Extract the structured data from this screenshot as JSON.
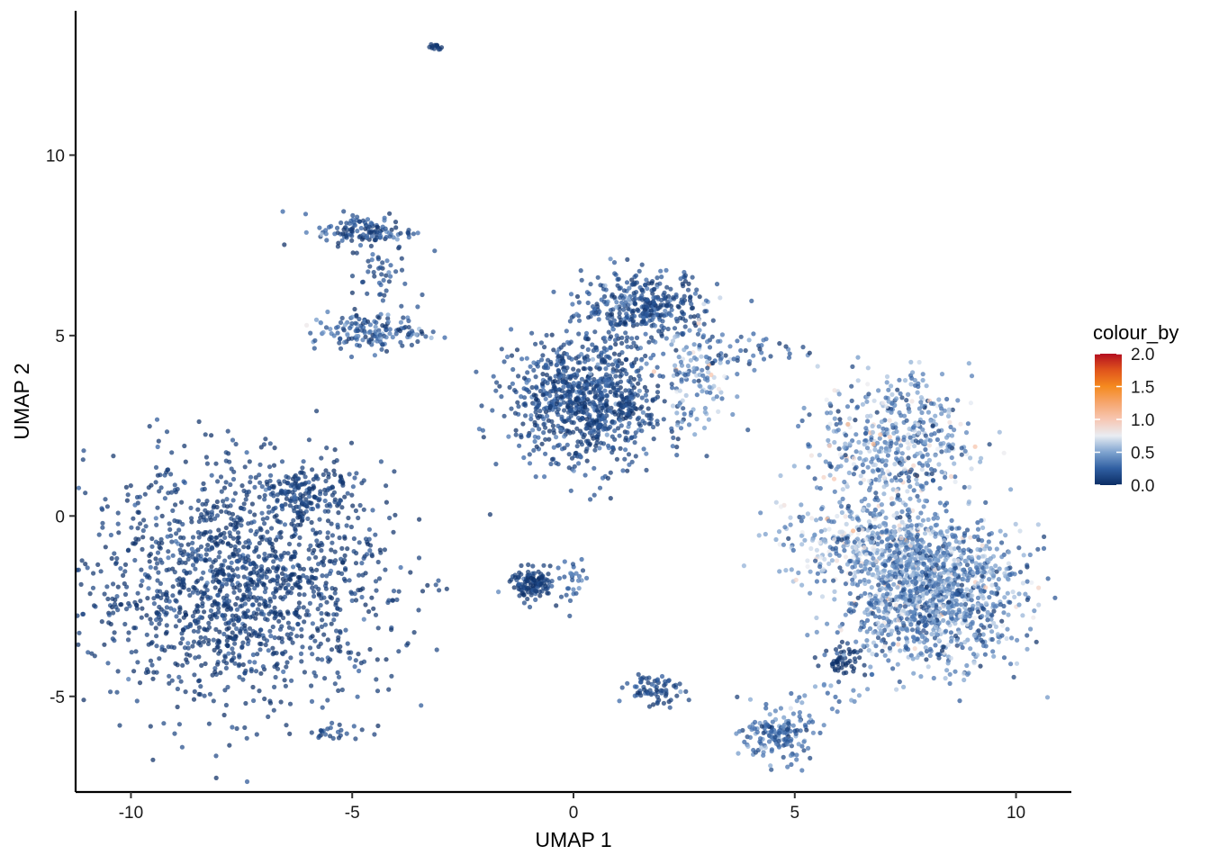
{
  "chart_data": {
    "type": "scatter",
    "xlabel": "UMAP 1",
    "ylabel": "UMAP 2",
    "xlim": [
      -11.25,
      11.25
    ],
    "ylim": [
      -7.65,
      14.0
    ],
    "x_ticks": [
      -10,
      -5,
      0,
      5,
      10
    ],
    "x_tick_labels": [
      "-10",
      "-5",
      "0",
      "5",
      "10"
    ],
    "y_ticks": [
      -5,
      0,
      5,
      10
    ],
    "y_tick_labels": [
      "-5",
      "0",
      "5",
      "10"
    ],
    "grid": false,
    "legend": {
      "title": "colour_by",
      "placement": "right",
      "type": "colorbar",
      "min": 0.0,
      "max": 2.0,
      "ticks": [
        0.0,
        0.5,
        1.0,
        1.5,
        2.0
      ],
      "tick_labels": [
        "0.0",
        "0.5",
        "1.0",
        "1.5",
        "2.0"
      ],
      "colors": [
        "#0b2d64",
        "#2f5ea1",
        "#7ea3cf",
        "#e9edf3",
        "#f7c7b3",
        "#f6a66e",
        "#f58a1f",
        "#e0541c",
        "#b40f20"
      ]
    },
    "clusters": [
      {
        "cx": -7.5,
        "cy": -1.9,
        "sx": 2.0,
        "sy": 1.9,
        "n": 1500,
        "value_mean": 0.08,
        "value_sd": 0.06
      },
      {
        "cx": -6.2,
        "cy": 0.6,
        "sx": 0.7,
        "sy": 0.5,
        "n": 150,
        "value_mean": 0.1,
        "value_sd": 0.06
      },
      {
        "cx": -5.5,
        "cy": -6.0,
        "sx": 0.45,
        "sy": 0.15,
        "n": 25,
        "value_mean": 0.1,
        "value_sd": 0.05
      },
      {
        "cx": -4.7,
        "cy": 7.9,
        "sx": 0.65,
        "sy": 0.3,
        "n": 130,
        "value_mean": 0.15,
        "value_sd": 0.12
      },
      {
        "cx": -4.6,
        "cy": 5.1,
        "sx": 0.8,
        "sy": 0.3,
        "n": 150,
        "value_mean": 0.2,
        "value_sd": 0.14
      },
      {
        "cx": -4.4,
        "cy": 6.6,
        "sx": 0.35,
        "sy": 0.55,
        "n": 40,
        "value_mean": 0.15,
        "value_sd": 0.1
      },
      {
        "cx": -3.1,
        "cy": 13.0,
        "sx": 0.08,
        "sy": 0.06,
        "n": 14,
        "value_mean": 0.05,
        "value_sd": 0.03
      },
      {
        "cx": 0.3,
        "cy": 3.2,
        "sx": 1.0,
        "sy": 1.05,
        "n": 900,
        "value_mean": 0.14,
        "value_sd": 0.1
      },
      {
        "cx": 1.6,
        "cy": 5.8,
        "sx": 0.8,
        "sy": 0.55,
        "n": 350,
        "value_mean": 0.16,
        "value_sd": 0.1
      },
      {
        "cx": 2.8,
        "cy": 3.8,
        "sx": 0.5,
        "sy": 0.8,
        "n": 120,
        "value_mean": 0.45,
        "value_sd": 0.2
      },
      {
        "cx": 4.0,
        "cy": 4.6,
        "sx": 0.7,
        "sy": 0.3,
        "n": 40,
        "value_mean": 0.25,
        "value_sd": 0.15
      },
      {
        "cx": -0.9,
        "cy": -1.9,
        "sx": 0.3,
        "sy": 0.25,
        "n": 120,
        "value_mean": 0.1,
        "value_sd": 0.06
      },
      {
        "cx": -0.1,
        "cy": -1.8,
        "sx": 0.25,
        "sy": 0.4,
        "n": 30,
        "value_mean": 0.25,
        "value_sd": 0.12
      },
      {
        "cx": 1.8,
        "cy": -4.8,
        "sx": 0.35,
        "sy": 0.3,
        "n": 70,
        "value_mean": 0.15,
        "value_sd": 0.08
      },
      {
        "cx": 4.6,
        "cy": -6.1,
        "sx": 0.45,
        "sy": 0.4,
        "n": 160,
        "value_mean": 0.28,
        "value_sd": 0.12
      },
      {
        "cx": 6.1,
        "cy": -4.0,
        "sx": 0.25,
        "sy": 0.25,
        "n": 50,
        "value_mean": 0.03,
        "value_sd": 0.02
      },
      {
        "cx": 7.3,
        "cy": 2.0,
        "sx": 1.0,
        "sy": 1.1,
        "n": 500,
        "value_mean": 0.4,
        "value_sd": 0.2
      },
      {
        "cx": 6.7,
        "cy": -0.7,
        "sx": 1.2,
        "sy": 0.6,
        "n": 400,
        "value_mean": 0.48,
        "value_sd": 0.2
      },
      {
        "cx": 8.1,
        "cy": -2.2,
        "sx": 1.2,
        "sy": 1.1,
        "n": 1200,
        "value_mean": 0.38,
        "value_sd": 0.18
      },
      {
        "cx": 5.6,
        "cy": -5.0,
        "sx": 0.7,
        "sy": 0.3,
        "n": 20,
        "value_mean": 0.3,
        "value_sd": 0.1
      }
    ]
  }
}
